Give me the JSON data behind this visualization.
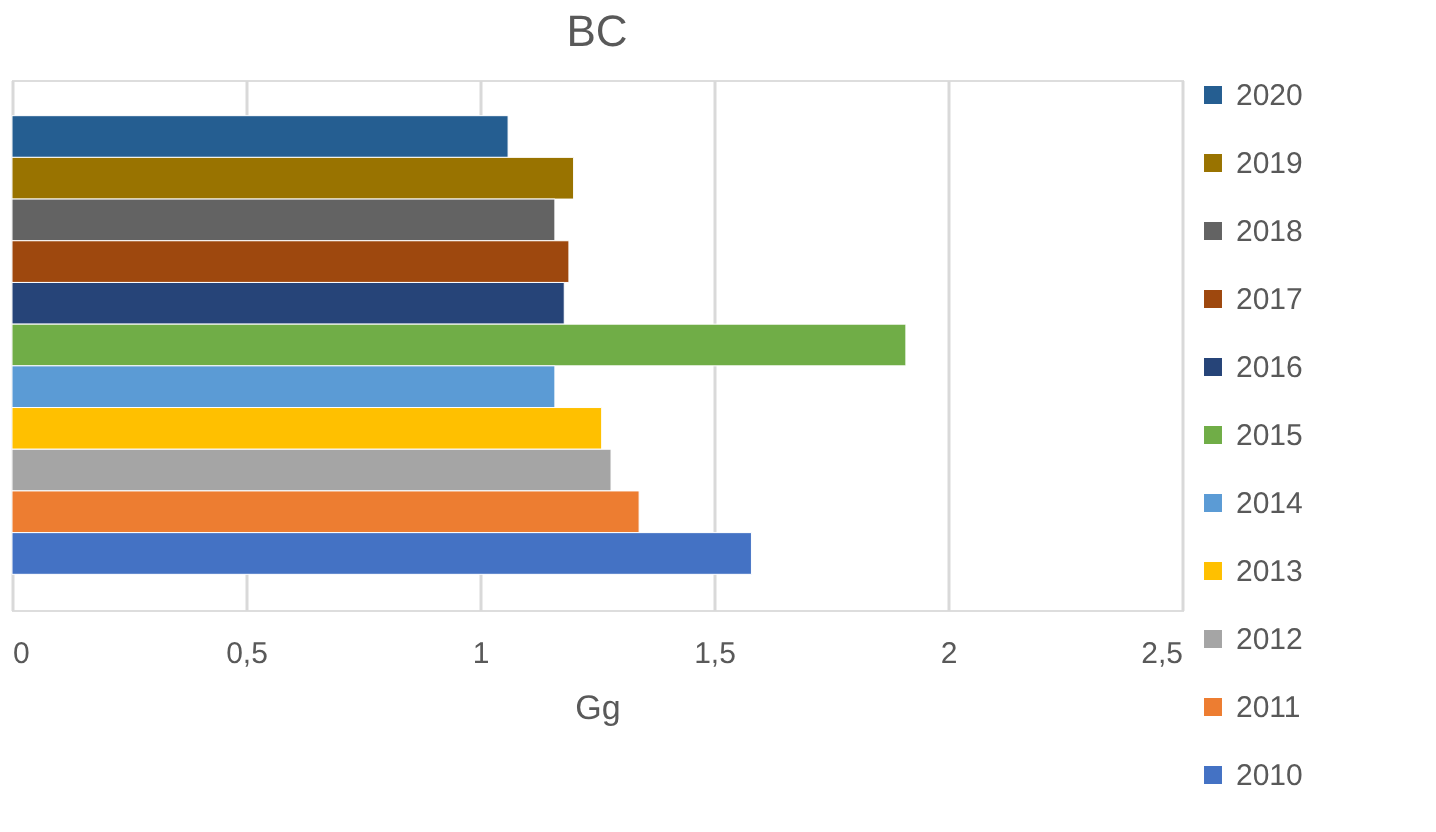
{
  "chart_data": {
    "type": "bar",
    "orientation": "horizontal",
    "title": "BC",
    "xlabel": "Gg",
    "categories": [
      null
    ],
    "series": [
      {
        "name": "2020",
        "color": "#255e91",
        "values": [
          1.06
        ]
      },
      {
        "name": "2019",
        "color": "#997300",
        "values": [
          1.2
        ]
      },
      {
        "name": "2018",
        "color": "#636363",
        "values": [
          1.16
        ]
      },
      {
        "name": "2017",
        "color": "#9e480e",
        "values": [
          1.19
        ]
      },
      {
        "name": "2016",
        "color": "#264478",
        "values": [
          1.18
        ]
      },
      {
        "name": "2015",
        "color": "#70ad47",
        "values": [
          1.91
        ]
      },
      {
        "name": "2014",
        "color": "#5b9bd5",
        "values": [
          1.16
        ]
      },
      {
        "name": "2013",
        "color": "#ffc000",
        "values": [
          1.26
        ]
      },
      {
        "name": "2012",
        "color": "#a5a5a5",
        "values": [
          1.28
        ]
      },
      {
        "name": "2011",
        "color": "#ed7d31",
        "values": [
          1.34
        ]
      },
      {
        "name": "2010",
        "color": "#4472c4",
        "values": [
          1.58
        ]
      }
    ],
    "xlim": [
      0,
      2.5
    ],
    "xticks": [
      0,
      {
        "value": 0.5,
        "label": "0,5"
      },
      1,
      {
        "value": 1.5,
        "label": "1,5"
      },
      2,
      {
        "value": 2.5,
        "label": "2,5"
      }
    ],
    "grid": "x",
    "legend": "right",
    "tick_labels": "x"
  }
}
